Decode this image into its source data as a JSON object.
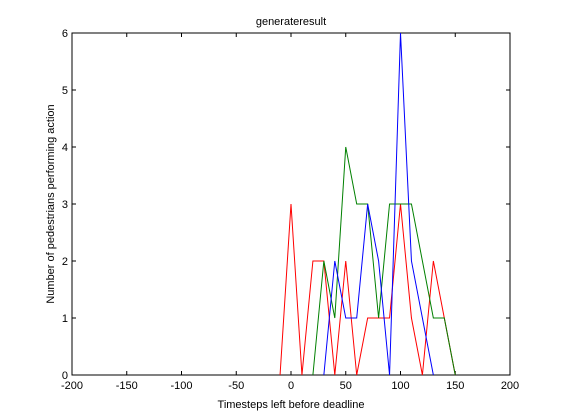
{
  "chart_data": {
    "type": "line",
    "title": "generateresult",
    "xlabel": "Timesteps left before deadline",
    "ylabel": "Number of pedestrians performing action",
    "xlim": [
      -200,
      200
    ],
    "ylim": [
      0,
      6
    ],
    "xticks": [
      -200,
      -150,
      -100,
      -50,
      0,
      50,
      100,
      150,
      200
    ],
    "yticks": [
      0,
      1,
      2,
      3,
      4,
      5,
      6
    ],
    "grid": false,
    "series": [
      {
        "color": "#ff0000",
        "points": [
          [
            -10,
            0
          ],
          [
            0,
            3
          ],
          [
            10,
            0
          ],
          [
            20,
            2
          ],
          [
            30,
            2
          ],
          [
            40,
            0
          ],
          [
            50,
            2
          ],
          [
            60,
            0
          ],
          [
            70,
            1
          ],
          [
            80,
            1
          ],
          [
            90,
            1
          ],
          [
            100,
            3
          ],
          [
            110,
            1
          ],
          [
            120,
            0
          ],
          [
            130,
            2
          ],
          [
            140,
            1
          ],
          [
            150,
            0
          ]
        ]
      },
      {
        "color": "#008000",
        "points": [
          [
            20,
            0
          ],
          [
            30,
            2
          ],
          [
            40,
            1
          ],
          [
            50,
            4
          ],
          [
            60,
            3
          ],
          [
            70,
            3
          ],
          [
            80,
            1
          ],
          [
            90,
            3
          ],
          [
            100,
            3
          ],
          [
            110,
            3
          ],
          [
            120,
            2
          ],
          [
            130,
            1
          ],
          [
            140,
            1
          ],
          [
            150,
            0
          ]
        ]
      },
      {
        "color": "#0000ff",
        "points": [
          [
            30,
            0
          ],
          [
            40,
            2
          ],
          [
            50,
            1
          ],
          [
            60,
            1
          ],
          [
            70,
            3
          ],
          [
            80,
            2
          ],
          [
            90,
            0
          ],
          [
            100,
            6
          ],
          [
            110,
            2
          ],
          [
            120,
            1
          ],
          [
            130,
            0
          ]
        ]
      }
    ]
  }
}
